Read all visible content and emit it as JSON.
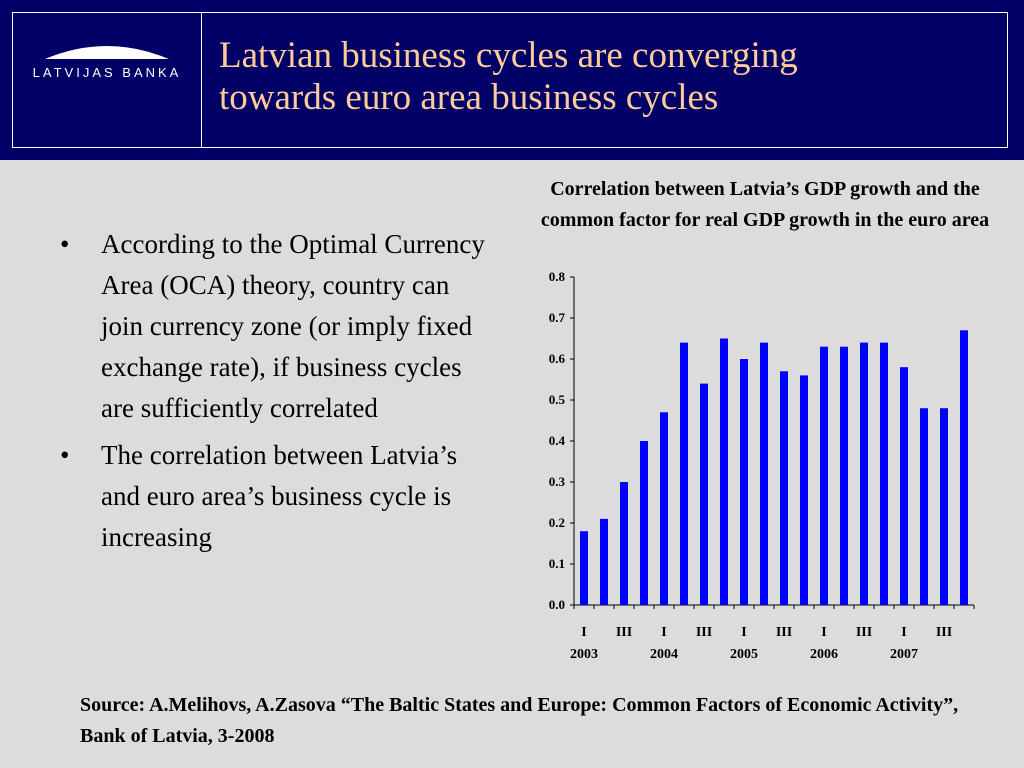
{
  "header": {
    "logo_text": "LATVIJAS BANKA",
    "title_lines": [
      "Latvian business cycles are converging",
      "towards euro area business cycles"
    ]
  },
  "bullets": [
    "According to the Optimal Currency Area (OCA) theory, country can join currency zone (or imply fixed exchange rate), if business cycles are sufficiently correlated",
    "The correlation between Latvia’s and euro area’s business cycle is increasing"
  ],
  "chart_data": {
    "type": "bar",
    "title": "Correlation between Latvia’s GDP growth and the common factor for real GDP growth in the euro area",
    "xlabel": "",
    "ylabel": "",
    "ylim": [
      0,
      0.8
    ],
    "yticks": [
      "0.0",
      "0.1",
      "0.2",
      "0.3",
      "0.4",
      "0.5",
      "0.6",
      "0.7",
      "0.8"
    ],
    "categories": [
      "2003 I",
      "2003 II",
      "2003 III",
      "2003 IV",
      "2004 I",
      "2004 II",
      "2004 III",
      "2004 IV",
      "2005 I",
      "2005 II",
      "2005 III",
      "2005 IV",
      "2006 I",
      "2006 II",
      "2006 III",
      "2006 IV",
      "2007 I",
      "2007 II",
      "2007 III",
      "2007 IV"
    ],
    "values": [
      0.18,
      0.21,
      0.3,
      0.4,
      0.47,
      0.64,
      0.54,
      0.65,
      0.6,
      0.64,
      0.57,
      0.56,
      0.63,
      0.63,
      0.64,
      0.64,
      0.58,
      0.48,
      0.48,
      0.67
    ],
    "x_tick_labels": [
      "I",
      "III",
      "I",
      "III",
      "I",
      "III",
      "I",
      "III",
      "I",
      "III"
    ],
    "year_labels": [
      "2003",
      "2004",
      "2005",
      "2006",
      "2007"
    ],
    "grid": false,
    "legend": "none",
    "bar_color": "#0000ff"
  },
  "source": "Source: A.Melihovs, A.Zasova “The Baltic States and Europe: Common Factors of Economic Activity”, Bank of Latvia, 3-2008",
  "colors": {
    "header_bg": "#000066",
    "title_text": "#ffcc99",
    "slide_bg": "#dcdcdc",
    "bar": "#0000ff"
  }
}
